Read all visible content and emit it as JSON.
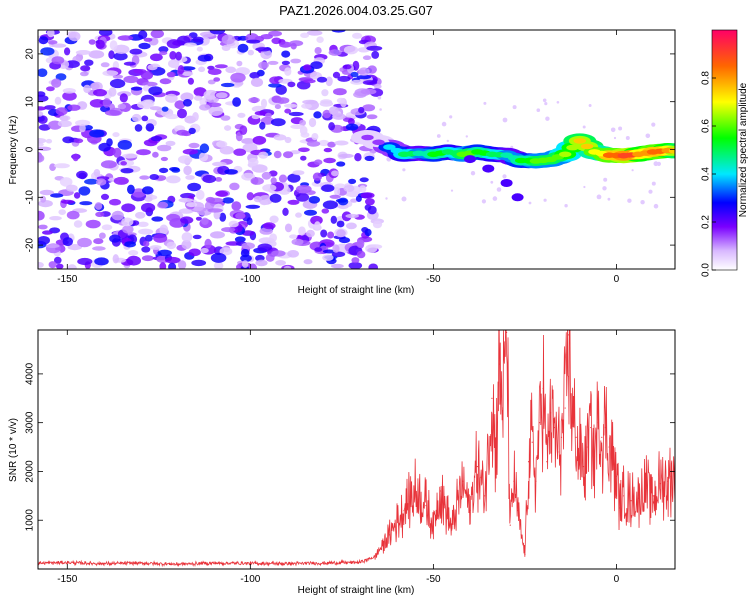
{
  "chart_data": [
    {
      "type": "heatmap",
      "title": "PAZ1.2026.004.03.25.G07",
      "xlabel": "Height of straight line (km)",
      "ylabel": "Frequency (Hz)",
      "xlim": [
        -158,
        16
      ],
      "ylim": [
        -25,
        25
      ],
      "xticks": [
        -150,
        -100,
        -50,
        0
      ],
      "xtick_labels": [
        "-150",
        "-100",
        "-50",
        "0"
      ],
      "yticks": [
        -20,
        -10,
        0,
        10,
        20
      ],
      "ytick_labels": [
        "-20",
        "-10",
        "0",
        "10",
        "20"
      ],
      "noise_region": {
        "x_range": [
          -158,
          -65
        ],
        "y_range": [
          -25,
          25
        ],
        "amplitude_range": [
          0.0,
          0.25
        ]
      },
      "signal_track": {
        "x": [
          -68,
          -62,
          -58,
          -54,
          -50,
          -46,
          -42,
          -38,
          -34,
          -30,
          -26,
          -22,
          -18,
          -14,
          -10,
          -6,
          -2,
          2,
          6,
          10,
          14,
          16
        ],
        "freq": [
          2.5,
          0.5,
          -1.0,
          -0.8,
          -1.0,
          -0.5,
          -1.0,
          -0.5,
          -1.0,
          -1.2,
          -2.3,
          -2.4,
          -2.1,
          -1.0,
          1.8,
          -0.5,
          -1.2,
          -1.3,
          -1.0,
          -0.5,
          -0.2,
          -0.3
        ],
        "amplitude": [
          0.15,
          0.4,
          0.5,
          0.45,
          0.55,
          0.5,
          0.6,
          0.55,
          0.5,
          0.45,
          0.55,
          0.6,
          0.6,
          0.65,
          0.75,
          0.7,
          0.85,
          0.9,
          0.8,
          0.85,
          0.8,
          0.75
        ]
      },
      "secondary_track": {
        "x": [
          -40,
          -35,
          -30,
          -27
        ],
        "freq": [
          -2,
          -4,
          -7,
          -10
        ]
      }
    },
    {
      "type": "colorbar",
      "label": "Normalized spectral amplitude",
      "range": [
        0,
        1
      ],
      "ticks": [
        0.0,
        0.2,
        0.4,
        0.6,
        0.8
      ],
      "tick_labels": [
        "0.0",
        "0.2",
        "0.4",
        "0.6",
        "0.8"
      ]
    },
    {
      "type": "line",
      "title": "",
      "xlabel": "Height of straight line (km)",
      "ylabel": "SNR (10 * v/v)",
      "xlim": [
        -158,
        16
      ],
      "ylim": [
        0,
        4900
      ],
      "xticks": [
        -150,
        -100,
        -50,
        0
      ],
      "xtick_labels": [
        "-150",
        "-100",
        "-50",
        "0"
      ],
      "yticks": [
        1000,
        2000,
        3000,
        4000
      ],
      "ytick_labels": [
        "1000",
        "2000",
        "3000",
        "4000"
      ],
      "color": "#e8333a",
      "series": [
        {
          "name": "SNR",
          "x": [
            -158,
            -150,
            -140,
            -130,
            -120,
            -110,
            -100,
            -90,
            -80,
            -70,
            -66,
            -62,
            -58,
            -55,
            -52,
            -50,
            -48,
            -45,
            -42,
            -40,
            -38,
            -36,
            -34,
            -33,
            -32,
            -31,
            -30,
            -29,
            -28,
            -27,
            -26,
            -25,
            -24,
            -23,
            -22,
            -21,
            -20,
            -19,
            -18,
            -17,
            -16,
            -15,
            -14,
            -13,
            -12,
            -11,
            -10,
            -9,
            -8,
            -7,
            -6,
            -5,
            -4,
            -3,
            -2,
            -1,
            0,
            1,
            2,
            4,
            6,
            8,
            10,
            12,
            14,
            15,
            16
          ],
          "y": [
            120,
            130,
            110,
            120,
            100,
            120,
            115,
            110,
            120,
            140,
            250,
            700,
            1200,
            1600,
            1300,
            900,
            1600,
            800,
            1800,
            1200,
            2100,
            1500,
            3500,
            2500,
            4200,
            3300,
            4850,
            900,
            1800,
            1200,
            700,
            300,
            2200,
            2600,
            1800,
            3000,
            3700,
            2200,
            3200,
            2900,
            2400,
            2700,
            3300,
            4800,
            3000,
            2700,
            2300,
            2100,
            2500,
            2900,
            2300,
            3000,
            2700,
            2900,
            2500,
            2200,
            1900,
            1250,
            1500,
            1400,
            1450,
            1650,
            1500,
            1750,
            1800,
            1900,
            1850
          ]
        }
      ]
    }
  ]
}
